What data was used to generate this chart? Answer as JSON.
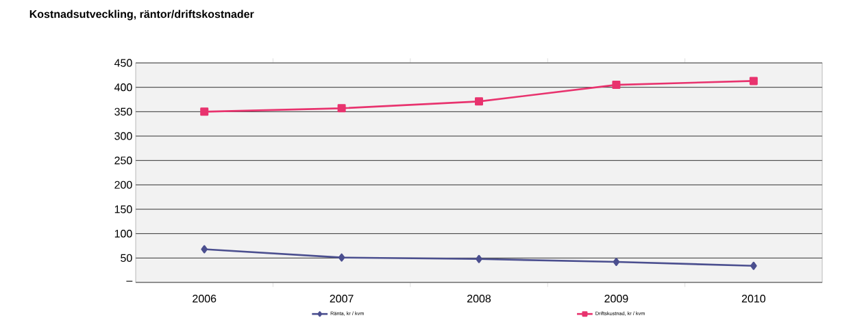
{
  "chart_data": {
    "type": "line",
    "title": "Kostnadsutveckling, räntor/driftskostnader",
    "categories": [
      "2006",
      "2007",
      "2008",
      "2009",
      "2010"
    ],
    "series": [
      {
        "name": "Ränta, kr / kvm",
        "color": "#4b4f8f",
        "marker": "diamond",
        "values": [
          68,
          51,
          48,
          42,
          34
        ]
      },
      {
        "name": "Driftskostnad, kr / kvm",
        "color": "#e8336e",
        "marker": "square",
        "values": [
          350,
          357,
          371,
          405,
          413
        ]
      }
    ],
    "ylim": [
      0,
      450
    ],
    "yticks": [
      {
        "value": 0,
        "label": "–"
      },
      50,
      100,
      150,
      200,
      250,
      300,
      350,
      400,
      450
    ],
    "grid": "y",
    "legend": "bottom"
  }
}
